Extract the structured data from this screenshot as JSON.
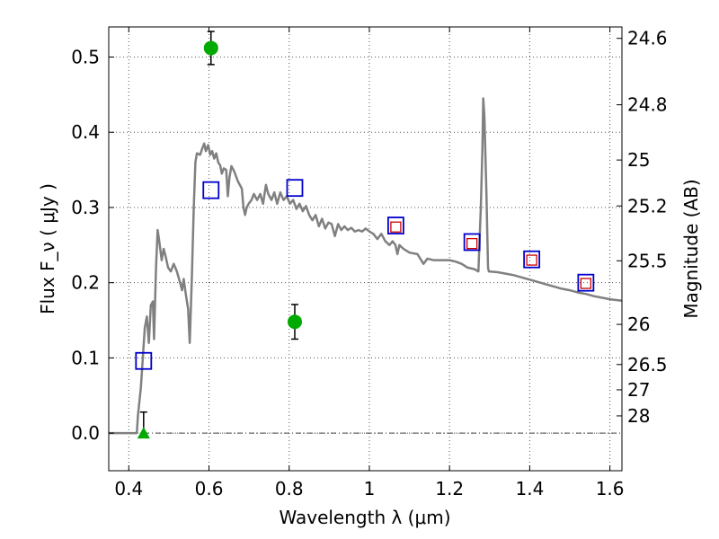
{
  "chart_data": {
    "type": "scatter",
    "xlabel": "Wavelength  λ (μm)",
    "ylabel": "Flux  F_ν  ( μJy )",
    "y2label": "Magnitude (AB)",
    "xlim": [
      0.35,
      1.63
    ],
    "ylim": [
      -0.05,
      0.54
    ],
    "grid": true,
    "x_ticks": [
      {
        "value": 0.4,
        "label": "0.4"
      },
      {
        "value": 0.6,
        "label": "0.6"
      },
      {
        "value": 0.8,
        "label": "0.8"
      },
      {
        "value": 1.0,
        "label": "1"
      },
      {
        "value": 1.2,
        "label": "1.2"
      },
      {
        "value": 1.4,
        "label": "1.4"
      },
      {
        "value": 1.6,
        "label": "1.6"
      }
    ],
    "y_ticks": [
      {
        "value": 0.0,
        "label": "0.0"
      },
      {
        "value": 0.1,
        "label": "0.1"
      },
      {
        "value": 0.2,
        "label": "0.2"
      },
      {
        "value": 0.3,
        "label": "0.3"
      },
      {
        "value": 0.4,
        "label": "0.4"
      },
      {
        "value": 0.5,
        "label": "0.5"
      }
    ],
    "mag_ticks": [
      {
        "mag": 24.6,
        "label": "24.6"
      },
      {
        "mag": 24.8,
        "label": "24.8"
      },
      {
        "mag": 25.0,
        "label": "25"
      },
      {
        "mag": 25.2,
        "label": "25.2"
      },
      {
        "mag": 25.5,
        "label": "25.5"
      },
      {
        "mag": 26.0,
        "label": "26"
      },
      {
        "mag": 26.5,
        "label": "26.5"
      },
      {
        "mag": 27.0,
        "label": "27"
      },
      {
        "mag": 28.0,
        "label": "28"
      }
    ],
    "model_color": "#808080",
    "model_spectrum": [
      [
        0.35,
        0.0
      ],
      [
        0.41,
        0.0
      ],
      [
        0.42,
        0.0
      ],
      [
        0.423,
        0.025
      ],
      [
        0.43,
        0.06
      ],
      [
        0.435,
        0.1
      ],
      [
        0.44,
        0.14
      ],
      [
        0.445,
        0.155
      ],
      [
        0.45,
        0.12
      ],
      [
        0.455,
        0.17
      ],
      [
        0.46,
        0.175
      ],
      [
        0.463,
        0.125
      ],
      [
        0.468,
        0.22
      ],
      [
        0.472,
        0.27
      ],
      [
        0.476,
        0.255
      ],
      [
        0.482,
        0.23
      ],
      [
        0.487,
        0.245
      ],
      [
        0.492,
        0.235
      ],
      [
        0.498,
        0.22
      ],
      [
        0.505,
        0.215
      ],
      [
        0.512,
        0.225
      ],
      [
        0.52,
        0.215
      ],
      [
        0.528,
        0.2
      ],
      [
        0.533,
        0.19
      ],
      [
        0.537,
        0.205
      ],
      [
        0.542,
        0.185
      ],
      [
        0.548,
        0.165
      ],
      [
        0.552,
        0.12
      ],
      [
        0.557,
        0.2
      ],
      [
        0.562,
        0.3
      ],
      [
        0.566,
        0.36
      ],
      [
        0.57,
        0.372
      ],
      [
        0.578,
        0.37
      ],
      [
        0.583,
        0.378
      ],
      [
        0.588,
        0.385
      ],
      [
        0.592,
        0.375
      ],
      [
        0.598,
        0.383
      ],
      [
        0.603,
        0.37
      ],
      [
        0.608,
        0.375
      ],
      [
        0.613,
        0.365
      ],
      [
        0.618,
        0.372
      ],
      [
        0.623,
        0.36
      ],
      [
        0.628,
        0.356
      ],
      [
        0.632,
        0.345
      ],
      [
        0.637,
        0.352
      ],
      [
        0.643,
        0.35
      ],
      [
        0.647,
        0.315
      ],
      [
        0.651,
        0.34
      ],
      [
        0.656,
        0.355
      ],
      [
        0.663,
        0.348
      ],
      [
        0.672,
        0.335
      ],
      [
        0.682,
        0.325
      ],
      [
        0.686,
        0.3
      ],
      [
        0.69,
        0.29
      ],
      [
        0.694,
        0.3
      ],
      [
        0.699,
        0.305
      ],
      [
        0.706,
        0.31
      ],
      [
        0.712,
        0.318
      ],
      [
        0.72,
        0.31
      ],
      [
        0.728,
        0.318
      ],
      [
        0.735,
        0.305
      ],
      [
        0.742,
        0.33
      ],
      [
        0.748,
        0.318
      ],
      [
        0.756,
        0.31
      ],
      [
        0.763,
        0.32
      ],
      [
        0.77,
        0.305
      ],
      [
        0.778,
        0.32
      ],
      [
        0.786,
        0.31
      ],
      [
        0.794,
        0.315
      ],
      [
        0.802,
        0.305
      ],
      [
        0.81,
        0.31
      ],
      [
        0.818,
        0.298
      ],
      [
        0.826,
        0.305
      ],
      [
        0.834,
        0.295
      ],
      [
        0.842,
        0.302
      ],
      [
        0.85,
        0.29
      ],
      [
        0.858,
        0.283
      ],
      [
        0.866,
        0.29
      ],
      [
        0.874,
        0.275
      ],
      [
        0.882,
        0.285
      ],
      [
        0.89,
        0.272
      ],
      [
        0.898,
        0.28
      ],
      [
        0.906,
        0.278
      ],
      [
        0.914,
        0.262
      ],
      [
        0.922,
        0.278
      ],
      [
        0.93,
        0.27
      ],
      [
        0.938,
        0.275
      ],
      [
        0.946,
        0.27
      ],
      [
        0.955,
        0.273
      ],
      [
        0.964,
        0.268
      ],
      [
        0.973,
        0.27
      ],
      [
        0.982,
        0.268
      ],
      [
        0.991,
        0.272
      ],
      [
        1.0,
        0.268
      ],
      [
        1.01,
        0.265
      ],
      [
        1.02,
        0.258
      ],
      [
        1.03,
        0.265
      ],
      [
        1.04,
        0.255
      ],
      [
        1.05,
        0.25
      ],
      [
        1.058,
        0.255
      ],
      [
        1.065,
        0.25
      ],
      [
        1.07,
        0.238
      ],
      [
        1.075,
        0.25
      ],
      [
        1.085,
        0.245
      ],
      [
        1.1,
        0.24
      ],
      [
        1.12,
        0.238
      ],
      [
        1.135,
        0.225
      ],
      [
        1.145,
        0.232
      ],
      [
        1.16,
        0.23
      ],
      [
        1.18,
        0.23
      ],
      [
        1.2,
        0.23
      ],
      [
        1.215,
        0.228
      ],
      [
        1.23,
        0.225
      ],
      [
        1.245,
        0.22
      ],
      [
        1.262,
        0.218
      ],
      [
        1.272,
        0.215
      ],
      [
        1.278,
        0.3
      ],
      [
        1.282,
        0.38
      ],
      [
        1.284,
        0.445
      ],
      [
        1.287,
        0.42
      ],
      [
        1.292,
        0.32
      ],
      [
        1.296,
        0.22
      ],
      [
        1.298,
        0.215
      ],
      [
        1.32,
        0.214
      ],
      [
        1.34,
        0.212
      ],
      [
        1.36,
        0.21
      ],
      [
        1.38,
        0.207
      ],
      [
        1.4,
        0.204
      ],
      [
        1.42,
        0.201
      ],
      [
        1.44,
        0.198
      ],
      [
        1.46,
        0.195
      ],
      [
        1.48,
        0.192
      ],
      [
        1.5,
        0.19
      ],
      [
        1.52,
        0.187
      ],
      [
        1.54,
        0.185
      ],
      [
        1.56,
        0.182
      ],
      [
        1.58,
        0.18
      ],
      [
        1.6,
        0.178
      ],
      [
        1.63,
        0.176
      ]
    ],
    "blue_squares": [
      {
        "x": 0.437,
        "y": 0.096
      },
      {
        "x": 0.605,
        "y": 0.323
      },
      {
        "x": 0.814,
        "y": 0.326
      },
      {
        "x": 1.066,
        "y": 0.276
      },
      {
        "x": 1.256,
        "y": 0.254
      },
      {
        "x": 1.405,
        "y": 0.231
      },
      {
        "x": 1.54,
        "y": 0.2
      }
    ],
    "red_squares": [
      {
        "x": 1.066,
        "y": 0.274
      },
      {
        "x": 1.256,
        "y": 0.252
      },
      {
        "x": 1.405,
        "y": 0.23
      },
      {
        "x": 1.54,
        "y": 0.199
      }
    ],
    "green_points": [
      {
        "x": 0.605,
        "y": 0.512,
        "err_low": 0.022,
        "err_high": 0.022
      },
      {
        "x": 0.814,
        "y": 0.148,
        "err_low": 0.023,
        "err_high": 0.023
      }
    ],
    "upper_limit": {
      "x": 0.437,
      "y": 0.0,
      "err_high": 0.028
    },
    "colors": {
      "blue": "#0000cc",
      "red": "#cc0000",
      "green": "#00aa00",
      "grid": "#555555"
    }
  }
}
